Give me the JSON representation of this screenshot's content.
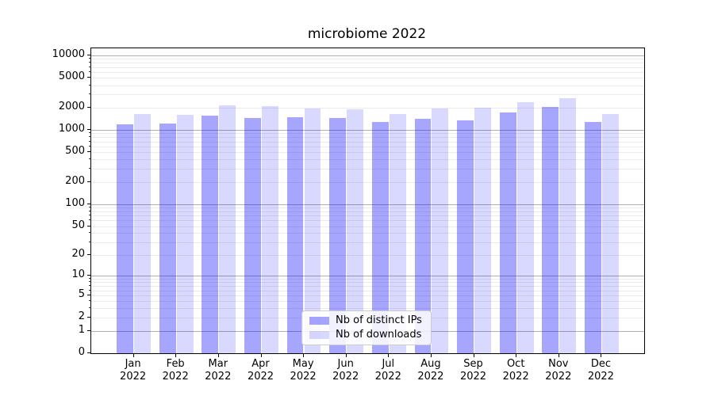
{
  "title": "microbiome 2022",
  "colors": {
    "bar_distinct_ips": "rgba(0,0,255,0.35)",
    "bar_downloads": "rgba(0,0,255,0.15)",
    "major_gridline": "#b0b0b0",
    "minor_gridline": "#ebebeb",
    "axis_line": "#000000",
    "text": "#000000",
    "legend_border": "#cccccc"
  },
  "legend": {
    "items": [
      {
        "label": "Nb of distinct IPs",
        "color": "rgba(0,0,255,0.35)"
      },
      {
        "label": "Nb of downloads",
        "color": "rgba(0,0,255,0.15)"
      }
    ],
    "position": "lower center"
  },
  "chart_data": {
    "type": "bar",
    "title": "microbiome 2022",
    "categories": [
      "Jan 2022",
      "Feb 2022",
      "Mar 2022",
      "Apr 2022",
      "May 2022",
      "Jun 2022",
      "Jul 2022",
      "Aug 2022",
      "Sep 2022",
      "Oct 2022",
      "Nov 2022",
      "Dec 2022"
    ],
    "category_month_labels": [
      "Jan",
      "Feb",
      "Mar",
      "Apr",
      "May",
      "Jun",
      "Jul",
      "Aug",
      "Sep",
      "Oct",
      "Nov",
      "Dec"
    ],
    "category_year_label": "2022",
    "series": [
      {
        "name": "Nb of distinct IPs",
        "values": [
          1190,
          1220,
          1560,
          1450,
          1490,
          1450,
          1280,
          1420,
          1350,
          1730,
          2050,
          1270
        ]
      },
      {
        "name": "Nb of downloads",
        "values": [
          1640,
          1600,
          2150,
          2100,
          1950,
          1900,
          1640,
          1950,
          2000,
          2390,
          2690,
          1640
        ]
      }
    ],
    "yscale": "log1p",
    "ylim": [
      0,
      12500
    ],
    "y_ticks": [
      10000,
      5000,
      2000,
      1000,
      500,
      200,
      100,
      50,
      20,
      10,
      5,
      2,
      1,
      0
    ],
    "y_tick_labels": [
      "10000",
      "5000",
      "2000",
      "1000",
      "500",
      "200",
      "100",
      "50",
      "20",
      "10",
      "5",
      "2",
      "1",
      "0"
    ],
    "grid": "both",
    "xlabel": "",
    "ylabel": "",
    "legend_position": "lower center"
  }
}
